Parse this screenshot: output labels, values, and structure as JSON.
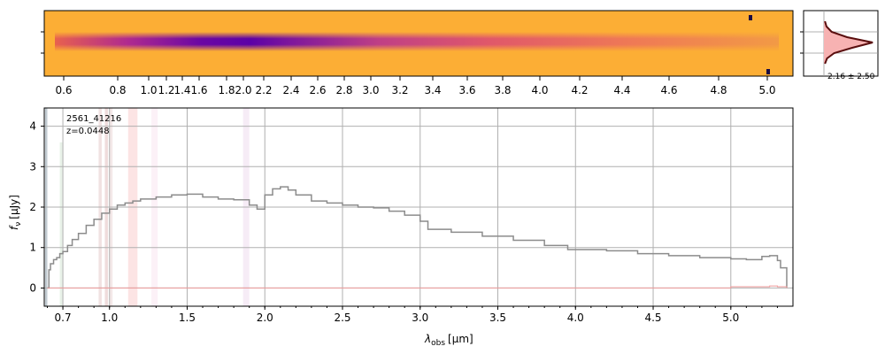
{
  "chart_data": [
    {
      "type": "heatmap",
      "description_panel": "2D spectrum",
      "tick_labels": [
        "0.6",
        "0.8",
        "1.0",
        "1.2",
        "1.4",
        "1.6",
        "1.8",
        "2.0",
        "2.2",
        "2.4",
        "2.6",
        "2.8",
        "3.0",
        "3.2",
        "3.4",
        "3.6",
        "3.8",
        "4.0",
        "4.2",
        "4.4",
        "4.6",
        "4.8",
        "5.0"
      ],
      "colormap": [
        "#fcae35",
        "#e8614e",
        "#b02a8f",
        "#5c01a6",
        "#1b0c42"
      ],
      "trace_center": 0.5
    },
    {
      "type": "area",
      "annotation": "2.16 ± 2.50",
      "profile_y": [
        -4,
        -3,
        -2,
        -1,
        0,
        1,
        2,
        3,
        4
      ],
      "profile_x": [
        0.02,
        0.05,
        0.15,
        0.45,
        0.95,
        0.55,
        0.2,
        0.06,
        0.02
      ],
      "colors": {
        "fill": "#f7b2b2",
        "line": "#5a0e0e",
        "guide": "#999999"
      }
    },
    {
      "type": "line",
      "object_id": "2561_41216",
      "redshift_label": "z=0.0448",
      "xlabel_main": "λ",
      "xlabel_sub": "obs",
      "xlabel_unit": "[μm]",
      "ylabel_main": "f",
      "ylabel_sub": "ν",
      "ylabel_unit": "[μJy]",
      "xlim": [
        0.58,
        5.4
      ],
      "ylim": [
        -0.45,
        4.45
      ],
      "x_ticks": [
        0.7,
        1.0,
        1.5,
        2.0,
        2.5,
        3.0,
        3.5,
        4.0,
        4.5,
        5.0
      ],
      "x_tick_labels": [
        "0.7",
        "1.0",
        "1.5",
        "2.0",
        "2.5",
        "3.0",
        "3.5",
        "4.0",
        "4.5",
        "5.0"
      ],
      "y_ticks": [
        0,
        1,
        2,
        3,
        4
      ],
      "y_tick_labels": [
        "0",
        "1",
        "2",
        "3",
        "4"
      ],
      "grid": true,
      "series": [
        {
          "color": "#8c8c8c",
          "x": [
            0.6,
            0.61,
            0.62,
            0.64,
            0.66,
            0.68,
            0.7,
            0.73,
            0.76,
            0.8,
            0.85,
            0.9,
            0.95,
            1.0,
            1.05,
            1.1,
            1.15,
            1.2,
            1.3,
            1.4,
            1.5,
            1.6,
            1.7,
            1.8,
            1.9,
            1.95,
            2.0,
            2.05,
            2.1,
            2.15,
            2.2,
            2.3,
            2.4,
            2.5,
            2.6,
            2.7,
            2.8,
            2.9,
            3.0,
            3.05,
            3.2,
            3.4,
            3.6,
            3.8,
            3.95,
            4.2,
            4.4,
            4.6,
            4.8,
            5.0,
            5.1,
            5.2,
            5.25,
            5.3,
            5.32,
            5.36
          ],
          "y": [
            0.0,
            0.45,
            0.6,
            0.7,
            0.75,
            0.85,
            0.9,
            1.05,
            1.2,
            1.35,
            1.55,
            1.7,
            1.85,
            1.95,
            2.05,
            2.1,
            2.15,
            2.2,
            2.25,
            2.3,
            2.32,
            2.25,
            2.2,
            2.18,
            2.05,
            1.95,
            2.3,
            2.45,
            2.5,
            2.42,
            2.3,
            2.15,
            2.1,
            2.05,
            2.0,
            1.98,
            1.9,
            1.8,
            1.65,
            1.45,
            1.38,
            1.28,
            1.18,
            1.05,
            0.95,
            0.92,
            0.85,
            0.8,
            0.75,
            0.72,
            0.7,
            0.78,
            0.8,
            0.68,
            0.5,
            0.0
          ]
        },
        {
          "color": "#ef9a9a",
          "x": [
            0.6,
            4.5,
            5.0,
            5.2,
            5.25,
            5.3,
            5.36
          ],
          "y": [
            0.0,
            0.0,
            0.03,
            0.03,
            0.05,
            0.03,
            0.0
          ]
        }
      ],
      "bands": [
        {
          "x0": 0.585,
          "x1": 0.6,
          "color": "#4c6a7a",
          "alpha": 0.35
        },
        {
          "x0": 0.68,
          "x1": 0.7,
          "color": "#8cc08c",
          "alpha": 0.2,
          "top": 3.6
        },
        {
          "x0": 0.93,
          "x1": 0.95,
          "color": "#c98a8a",
          "alpha": 0.25
        },
        {
          "x0": 0.97,
          "x1": 0.99,
          "color": "#c98a8a",
          "alpha": 0.3
        },
        {
          "x0": 1.0,
          "x1": 1.02,
          "color": "#c98a8a",
          "alpha": 0.2
        },
        {
          "x0": 1.12,
          "x1": 1.18,
          "color": "#f4a4a4",
          "alpha": 0.3
        },
        {
          "x0": 1.27,
          "x1": 1.31,
          "color": "#f0b8d8",
          "alpha": 0.2
        },
        {
          "x0": 1.86,
          "x1": 1.9,
          "color": "#e0c0e0",
          "alpha": 0.3
        }
      ]
    }
  ]
}
